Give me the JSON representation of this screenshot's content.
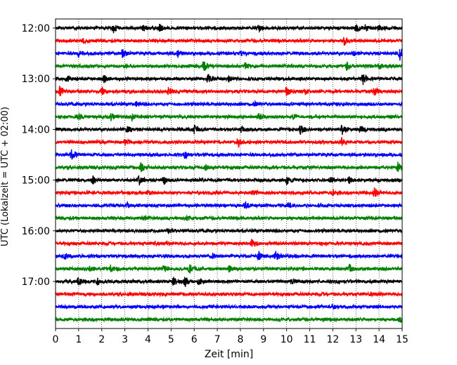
{
  "chart_data": {
    "type": "line",
    "title": "",
    "xlabel": "Zeit  [min]",
    "ylabel": "UTC (Lokalzeit = UTC + 02:00)",
    "xlim": [
      0,
      15
    ],
    "x_ticks": [
      0,
      1,
      2,
      3,
      4,
      5,
      6,
      7,
      8,
      9,
      10,
      11,
      12,
      13,
      14,
      15
    ],
    "x_tick_labels": [
      "0",
      "1",
      "2",
      "3",
      "4",
      "5",
      "6",
      "7",
      "8",
      "9",
      "10",
      "11",
      "12",
      "13",
      "14",
      "15"
    ],
    "y_ticks": [
      "12:00",
      "13:00",
      "14:00",
      "15:00",
      "16:00",
      "17:00"
    ],
    "grid": "vertical dotted",
    "trace_colors": [
      "#000000",
      "#ff0000",
      "#0000ff",
      "#008000"
    ],
    "traces": [
      {
        "start": "12:00",
        "color": "#000000",
        "events": [
          {
            "x": 2.5,
            "amp": 0.7
          },
          {
            "x": 3.8,
            "amp": 0.4
          },
          {
            "x": 4.5,
            "amp": 0.5
          },
          {
            "x": 8.8,
            "amp": 0.4
          },
          {
            "x": 13.0,
            "amp": 0.6
          },
          {
            "x": 13.4,
            "amp": 0.5
          },
          {
            "x": 14.0,
            "amp": 0.3
          }
        ]
      },
      {
        "start": "12:15",
        "color": "#ff0000",
        "events": [
          {
            "x": 1.2,
            "amp": 0.3
          },
          {
            "x": 12.5,
            "amp": 0.6
          }
        ]
      },
      {
        "start": "12:30",
        "color": "#0000ff",
        "events": [
          {
            "x": 1.0,
            "amp": 0.5
          },
          {
            "x": 2.9,
            "amp": 0.8
          },
          {
            "x": 5.3,
            "amp": 0.5
          },
          {
            "x": 8.0,
            "amp": 0.3
          },
          {
            "x": 12.9,
            "amp": 0.4
          },
          {
            "x": 14.9,
            "amp": 0.9
          }
        ]
      },
      {
        "start": "12:45",
        "color": "#008000",
        "events": [
          {
            "x": 6.4,
            "amp": 0.9
          },
          {
            "x": 8.2,
            "amp": 0.4
          },
          {
            "x": 12.6,
            "amp": 0.6
          },
          {
            "x": 14.0,
            "amp": 0.4
          }
        ]
      },
      {
        "start": "13:00",
        "color": "#000000",
        "events": [
          {
            "x": 0.5,
            "amp": 0.4
          },
          {
            "x": 2.1,
            "amp": 0.6
          },
          {
            "x": 6.6,
            "amp": 0.8
          },
          {
            "x": 7.5,
            "amp": 0.4
          },
          {
            "x": 13.3,
            "amp": 0.8
          }
        ]
      },
      {
        "start": "13:15",
        "color": "#ff0000",
        "events": [
          {
            "x": 0.2,
            "amp": 0.9
          },
          {
            "x": 2.0,
            "amp": 0.5
          },
          {
            "x": 4.9,
            "amp": 0.6
          },
          {
            "x": 10.0,
            "amp": 0.7
          },
          {
            "x": 10.8,
            "amp": 0.5
          },
          {
            "x": 13.8,
            "amp": 0.6
          }
        ]
      },
      {
        "start": "13:30",
        "color": "#0000ff",
        "events": [
          {
            "x": 3.5,
            "amp": 0.3
          },
          {
            "x": 8.6,
            "amp": 0.3
          }
        ]
      },
      {
        "start": "13:45",
        "color": "#008000",
        "events": [
          {
            "x": 1.0,
            "amp": 0.4
          },
          {
            "x": 2.4,
            "amp": 0.5
          },
          {
            "x": 3.3,
            "amp": 0.5
          },
          {
            "x": 8.8,
            "amp": 0.5
          },
          {
            "x": 10.3,
            "amp": 0.3
          }
        ]
      },
      {
        "start": "14:00",
        "color": "#000000",
        "events": [
          {
            "x": 3.1,
            "amp": 0.6
          },
          {
            "x": 6.0,
            "amp": 0.7
          },
          {
            "x": 8.0,
            "amp": 0.4
          },
          {
            "x": 10.6,
            "amp": 0.8
          },
          {
            "x": 12.4,
            "amp": 0.8
          },
          {
            "x": 13.2,
            "amp": 0.5
          }
        ]
      },
      {
        "start": "14:15",
        "color": "#ff0000",
        "events": [
          {
            "x": 3.0,
            "amp": 0.4
          },
          {
            "x": 7.9,
            "amp": 0.8
          },
          {
            "x": 12.4,
            "amp": 0.6
          }
        ]
      },
      {
        "start": "14:30",
        "color": "#0000ff",
        "events": [
          {
            "x": 0.7,
            "amp": 0.9
          },
          {
            "x": 5.6,
            "amp": 0.4
          }
        ]
      },
      {
        "start": "14:45",
        "color": "#008000",
        "events": [
          {
            "x": 3.7,
            "amp": 0.8
          },
          {
            "x": 6.5,
            "amp": 0.5
          },
          {
            "x": 14.8,
            "amp": 0.8
          }
        ]
      },
      {
        "start": "15:00",
        "color": "#000000",
        "events": [
          {
            "x": 1.6,
            "amp": 0.6
          },
          {
            "x": 3.6,
            "amp": 0.8
          },
          {
            "x": 4.7,
            "amp": 0.7
          },
          {
            "x": 10.0,
            "amp": 0.7
          },
          {
            "x": 11.9,
            "amp": 0.5
          },
          {
            "x": 12.7,
            "amp": 0.5
          }
        ]
      },
      {
        "start": "15:15",
        "color": "#ff0000",
        "events": [
          {
            "x": 4.0,
            "amp": 0.3
          },
          {
            "x": 8.5,
            "amp": 0.3
          },
          {
            "x": 12.0,
            "amp": 0.4
          },
          {
            "x": 13.8,
            "amp": 0.9
          }
        ]
      },
      {
        "start": "15:30",
        "color": "#0000ff",
        "events": [
          {
            "x": 3.1,
            "amp": 0.3
          },
          {
            "x": 8.2,
            "amp": 0.5
          },
          {
            "x": 10.1,
            "amp": 0.3
          }
        ]
      },
      {
        "start": "15:45",
        "color": "#008000",
        "events": [
          {
            "x": 3.8,
            "amp": 0.3
          },
          {
            "x": 5.7,
            "amp": 0.3
          }
        ]
      },
      {
        "start": "16:00",
        "color": "#000000",
        "events": [
          {
            "x": 4.9,
            "amp": 0.3
          }
        ]
      },
      {
        "start": "16:15",
        "color": "#ff0000",
        "events": [
          {
            "x": 4.3,
            "amp": 0.3
          },
          {
            "x": 8.5,
            "amp": 0.7
          }
        ]
      },
      {
        "start": "16:30",
        "color": "#0000ff",
        "events": [
          {
            "x": 0.4,
            "amp": 0.4
          },
          {
            "x": 6.8,
            "amp": 0.4
          },
          {
            "x": 8.8,
            "amp": 0.8
          },
          {
            "x": 9.5,
            "amp": 0.9
          }
        ]
      },
      {
        "start": "16:45",
        "color": "#008000",
        "events": [
          {
            "x": 1.5,
            "amp": 0.4
          },
          {
            "x": 2.4,
            "amp": 0.6
          },
          {
            "x": 4.7,
            "amp": 0.5
          },
          {
            "x": 5.8,
            "amp": 0.7
          },
          {
            "x": 7.5,
            "amp": 0.5
          },
          {
            "x": 12.7,
            "amp": 0.7
          }
        ]
      },
      {
        "start": "17:00",
        "color": "#000000",
        "events": [
          {
            "x": 1.0,
            "amp": 0.6
          },
          {
            "x": 1.8,
            "amp": 0.5
          },
          {
            "x": 5.1,
            "amp": 0.6
          },
          {
            "x": 5.6,
            "amp": 0.8
          },
          {
            "x": 6.2,
            "amp": 0.5
          },
          {
            "x": 10.2,
            "amp": 0.4
          }
        ]
      },
      {
        "start": "17:15",
        "color": "#ff0000",
        "events": [
          {
            "x": 13.6,
            "amp": 0.3
          }
        ]
      },
      {
        "start": "17:30",
        "color": "#0000ff",
        "events": [
          {
            "x": 4.6,
            "amp": 0.2
          },
          {
            "x": 12.0,
            "amp": 0.3
          }
        ]
      },
      {
        "start": "17:45",
        "color": "#008000",
        "events": [
          {
            "x": 14.9,
            "amp": 0.5
          }
        ]
      }
    ]
  }
}
